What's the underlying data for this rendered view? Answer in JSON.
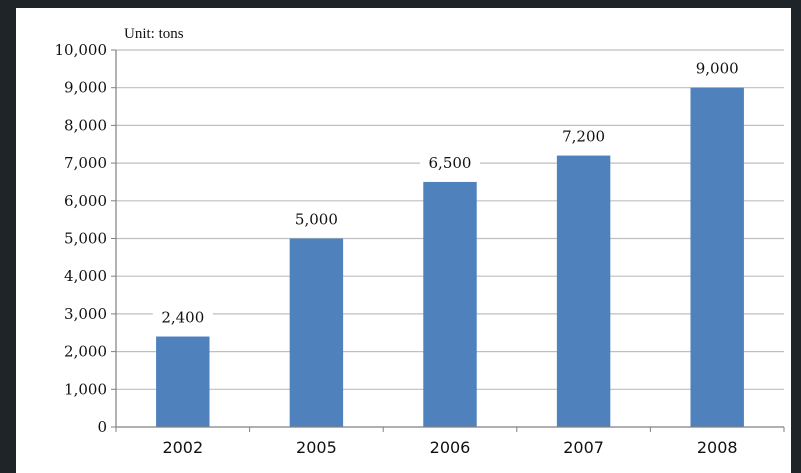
{
  "chart_data": {
    "type": "bar",
    "unit_label": "Unit: tons",
    "categories": [
      "2002",
      "2005",
      "2006",
      "2007",
      "2008"
    ],
    "values": [
      2400,
      5000,
      6500,
      7200,
      9000
    ],
    "data_labels": [
      "2,400",
      "5,000",
      "6,500",
      "7,200",
      "9,000"
    ],
    "y_ticks": [
      0,
      1000,
      2000,
      3000,
      4000,
      5000,
      6000,
      7000,
      8000,
      9000,
      10000
    ],
    "y_tick_labels": [
      "0",
      "1,000",
      "2,000",
      "3,000",
      "4,000",
      "5,000",
      "6,000",
      "7,000",
      "8,000",
      "9,000",
      "10,000"
    ],
    "ylim": [
      0,
      10000
    ],
    "grid": true,
    "legend": "none",
    "bar_color": "#4f81bd",
    "grid_color": "#bfbfbf",
    "title": "",
    "xlabel": "",
    "ylabel": ""
  }
}
